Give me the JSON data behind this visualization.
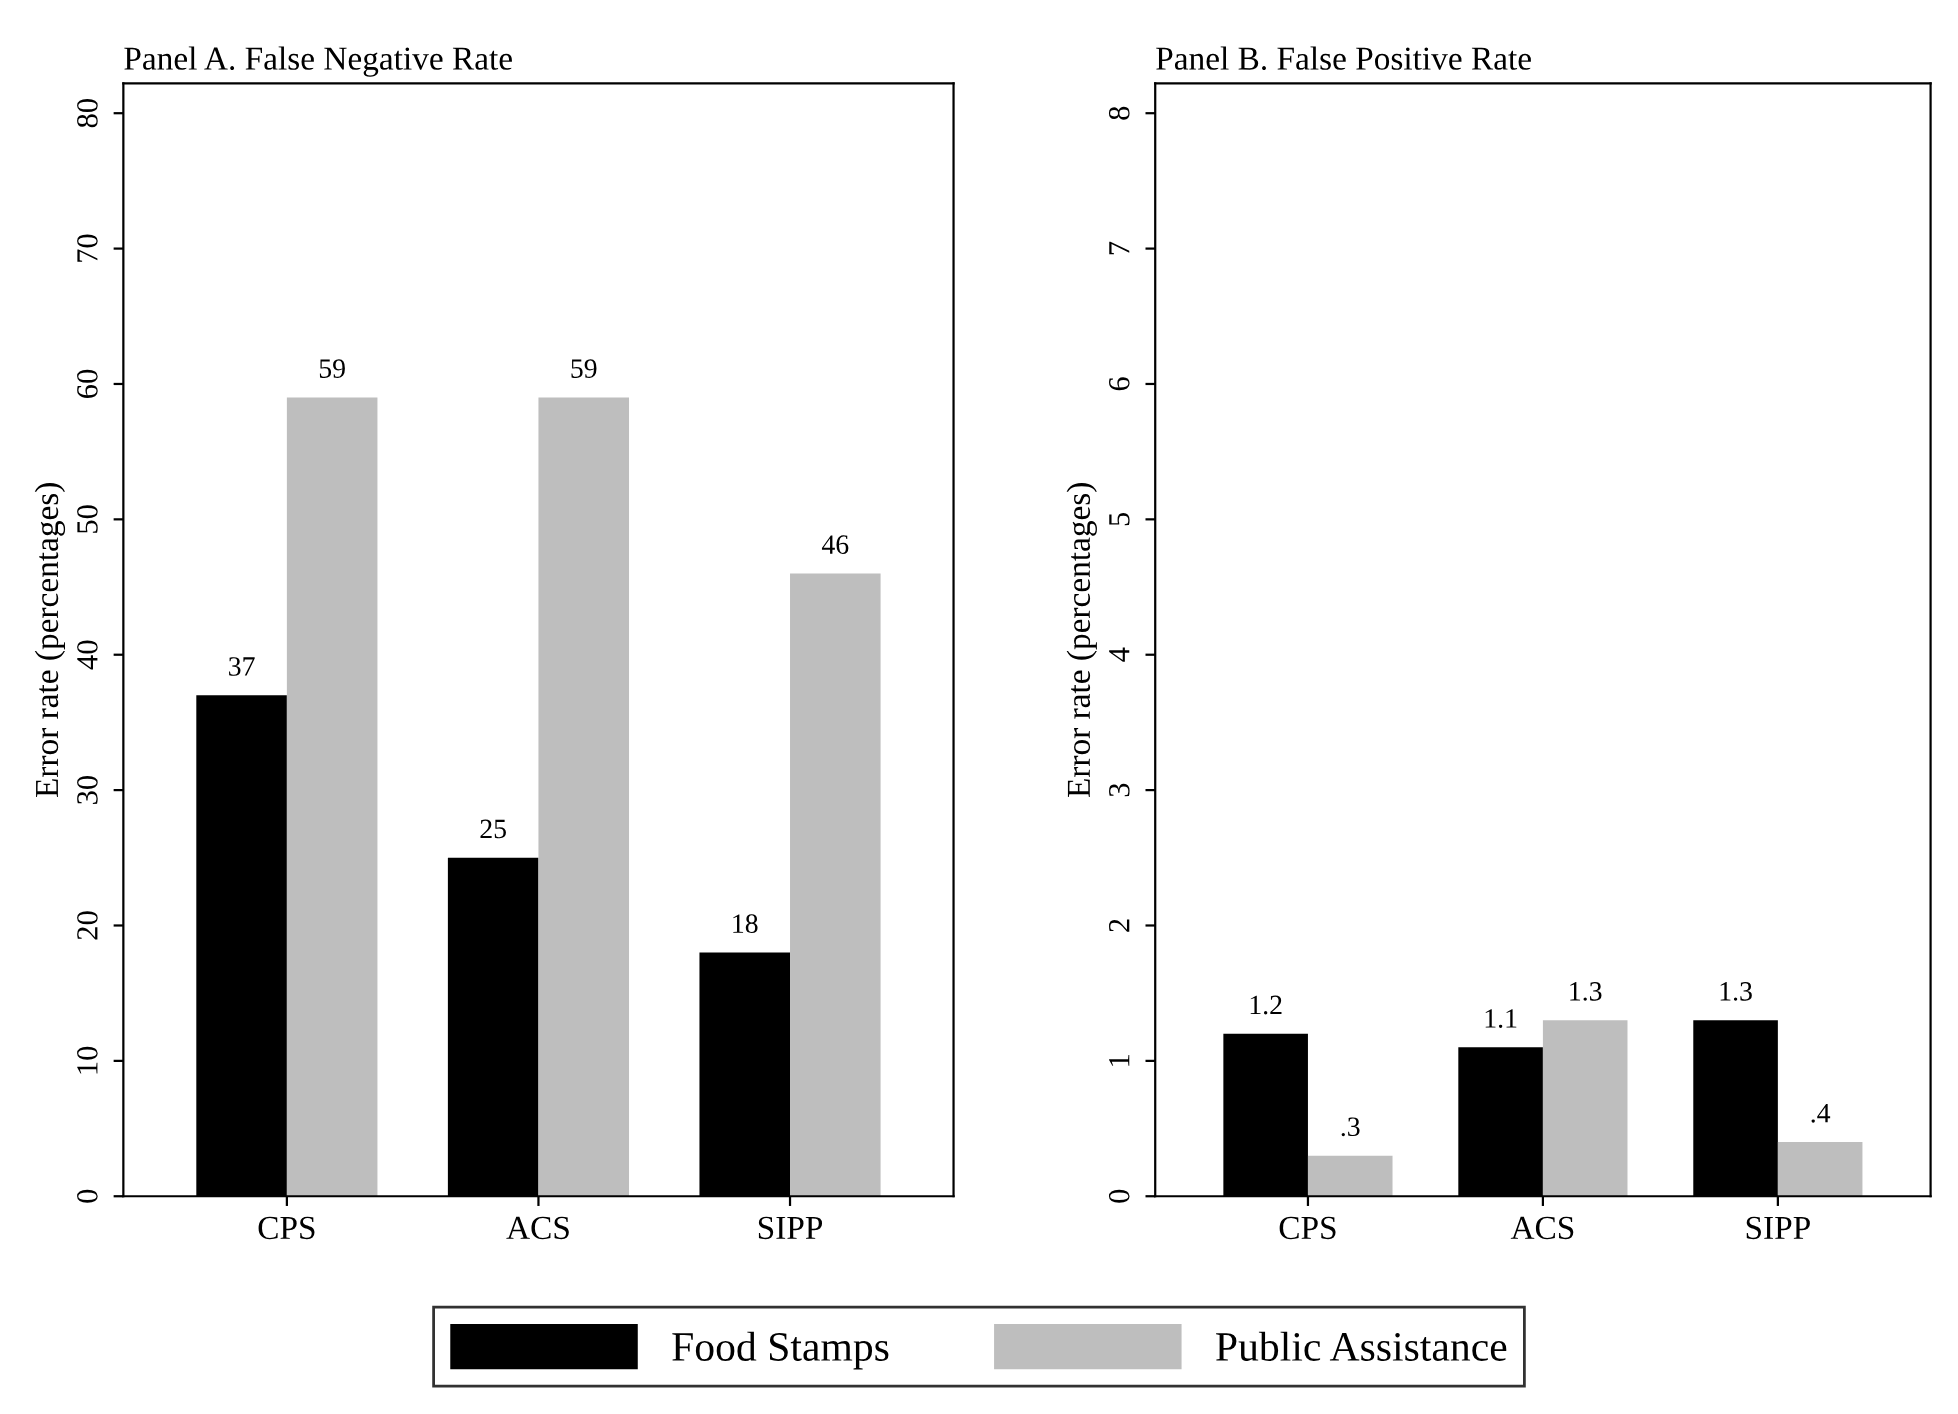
{
  "chart_data": [
    {
      "type": "bar",
      "title": "Panel A. False Negative Rate",
      "ylabel": "Error rate (percentages)",
      "categories": [
        "CPS",
        "ACS",
        "SIPP"
      ],
      "series": [
        {
          "name": "Food Stamps",
          "color": "#000000",
          "values": [
            37,
            25,
            18
          ],
          "value_labels": [
            "37",
            "25",
            "18"
          ]
        },
        {
          "name": "Public Assistance",
          "color": "#bebebe",
          "values": [
            59,
            59,
            46
          ],
          "value_labels": [
            "59",
            "59",
            "46"
          ]
        }
      ],
      "ylim": [
        0,
        82.2
      ],
      "yticks": [
        0,
        10,
        20,
        30,
        40,
        50,
        60,
        70,
        80
      ],
      "grid": false,
      "legend": "bottom"
    },
    {
      "type": "bar",
      "title": "Panel B. False Positive Rate",
      "ylabel": "Error rate (percentages)",
      "categories": [
        "CPS",
        "ACS",
        "SIPP"
      ],
      "series": [
        {
          "color": "#000000",
          "values": [
            1.2,
            1.1,
            1.3
          ],
          "value_labels": [
            "1.2",
            "1.1",
            "1.3"
          ]
        },
        {
          "color": "#bebebe",
          "values": [
            0.3,
            1.3,
            0.4
          ],
          "value_labels": [
            ".3",
            "1.3",
            ".4"
          ]
        }
      ],
      "ylim": [
        0,
        8.22
      ],
      "yticks": [
        0,
        1,
        2,
        3,
        4,
        5,
        6,
        7,
        8
      ],
      "grid": false
    }
  ]
}
